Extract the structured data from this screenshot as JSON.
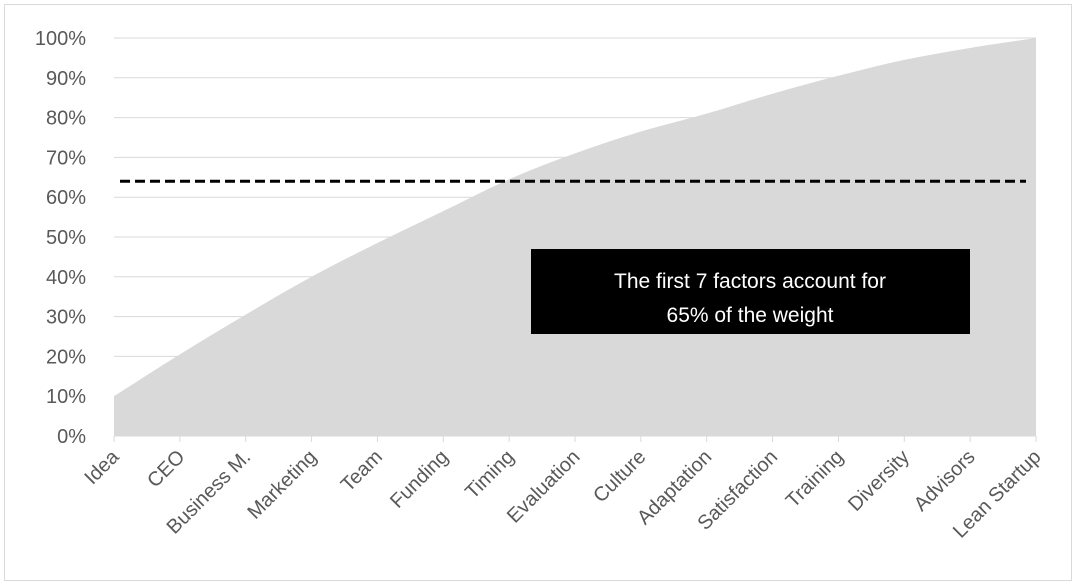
{
  "chart_data": {
    "type": "area",
    "title": "",
    "xlabel": "",
    "ylabel": "",
    "categories": [
      "Idea",
      "CEO",
      "Business M.",
      "Marketing",
      "Team",
      "Funding",
      "Timing",
      "Evaluation",
      "Culture",
      "Adaptation",
      "Satisfaction",
      "Training",
      "Diversity",
      "Advisors",
      "Lean Startup"
    ],
    "values": [
      10,
      20.5,
      30.5,
      40,
      48.5,
      56.5,
      64.5,
      71,
      76.5,
      81,
      86,
      90.5,
      94.5,
      97.5,
      100
    ],
    "ylim": [
      0,
      100
    ],
    "yticks": [
      "0%",
      "10%",
      "20%",
      "30%",
      "40%",
      "50%",
      "60%",
      "70%",
      "80%",
      "90%",
      "100%"
    ],
    "threshold": 64,
    "grid": true,
    "legend": "none",
    "annotation": {
      "line1": "The first 7 factors account for",
      "line2": "65% of the weight"
    },
    "colors": {
      "area": "#d9d9d9",
      "grid": "#d9d9d9",
      "threshold": "#000000",
      "annotation_bg": "#000000",
      "annotation_text": "#ffffff",
      "tick_text": "#595959"
    }
  }
}
